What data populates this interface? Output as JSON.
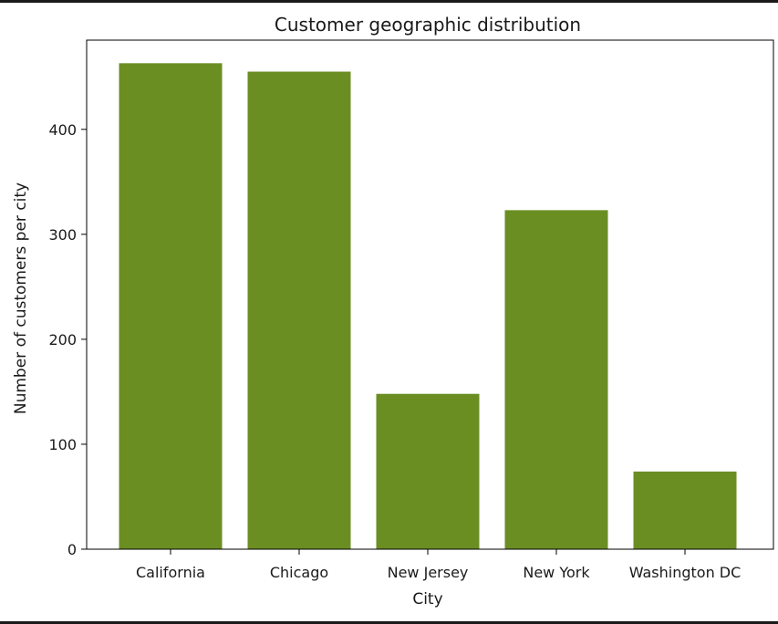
{
  "chart_data": {
    "type": "bar",
    "title": "Customer geographic distribution",
    "xlabel": "City",
    "ylabel": "Number of customers per city",
    "categories": [
      "California",
      "Chicago",
      "New Jersey",
      "New York",
      "Washington DC"
    ],
    "values": [
      463,
      455,
      148,
      323,
      74
    ],
    "ylim": [
      0,
      485
    ],
    "yticks": [
      "0",
      "100",
      "200",
      "300",
      "400"
    ],
    "bar_color": "#6b8e23",
    "grid": false,
    "legend": "none"
  }
}
